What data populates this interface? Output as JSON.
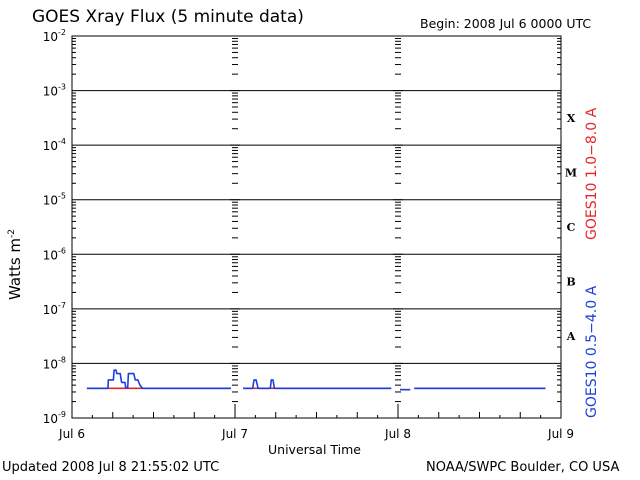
{
  "chart_data": {
    "type": "line",
    "title": "GOES Xray Flux (5 minute data)",
    "begin_label": "Begin:  2008 Jul 6 0000 UTC",
    "xlabel": "Universal Time",
    "ylabel": "Watts m",
    "ylabel_exp": "-2",
    "yscale": "log",
    "ylim": [
      1e-09,
      0.01
    ],
    "xlim": [
      0,
      72
    ],
    "x_unit": "hours since 2008 Jul 6 0000 UTC",
    "x_ticks": [
      {
        "x": 0,
        "label": "Jul 6"
      },
      {
        "x": 24,
        "label": "Jul 7"
      },
      {
        "x": 48,
        "label": "Jul 8"
      },
      {
        "x": 72,
        "label": "Jul 9"
      }
    ],
    "y_ticks": [
      {
        "exp": -9,
        "label": "10",
        "sup": "-9"
      },
      {
        "exp": -8,
        "label": "10",
        "sup": "-8"
      },
      {
        "exp": -7,
        "label": "10",
        "sup": "-7"
      },
      {
        "exp": -6,
        "label": "10",
        "sup": "-6"
      },
      {
        "exp": -5,
        "label": "10",
        "sup": "-5"
      },
      {
        "exp": -4,
        "label": "10",
        "sup": "-4"
      },
      {
        "exp": -3,
        "label": "10",
        "sup": "-3"
      },
      {
        "exp": -2,
        "label": "10",
        "sup": "-2"
      }
    ],
    "flare_classes": [
      {
        "label": "A",
        "exp": -7.5
      },
      {
        "label": "B",
        "exp": -6.5
      },
      {
        "label": "C",
        "exp": -5.5
      },
      {
        "label": "M",
        "exp": -4.5
      },
      {
        "label": "X",
        "exp": -3.5
      }
    ],
    "grid": true,
    "series": [
      {
        "name": "GOES10 1.0−8.0 A",
        "color": "#e8242b",
        "segments": [
          [
            [
              2.2,
              3.5e-09
            ],
            [
              23.4,
              3.5e-09
            ]
          ],
          [
            [
              25.2,
              3.5e-09
            ],
            [
              47.0,
              3.5e-09
            ]
          ],
          [
            [
              48.3,
              3.3e-09
            ],
            [
              49.8,
              3.3e-09
            ]
          ],
          [
            [
              50.4,
              3.5e-09
            ],
            [
              69.7,
              3.5e-09
            ]
          ]
        ]
      },
      {
        "name": "GOES10 0.5−4.0 A",
        "color": "#1e3fe0",
        "segments": [
          [
            [
              2.2,
              3.5e-09
            ],
            [
              5.3,
              3.5e-09
            ],
            [
              5.35,
              5e-09
            ],
            [
              6.1,
              5e-09
            ],
            [
              6.2,
              7.5e-09
            ],
            [
              6.5,
              7.5e-09
            ],
            [
              6.6,
              6.5e-09
            ],
            [
              7.1,
              6.5e-09
            ],
            [
              7.3,
              4.5e-09
            ],
            [
              7.8,
              4.5e-09
            ],
            [
              7.9,
              3.6e-09
            ],
            [
              8.2,
              3.6e-09
            ],
            [
              8.3,
              6.5e-09
            ],
            [
              9.1,
              6.5e-09
            ],
            [
              9.3,
              5e-09
            ],
            [
              9.7,
              5e-09
            ],
            [
              10.0,
              4e-09
            ],
            [
              10.4,
              3.5e-09
            ],
            [
              23.4,
              3.5e-09
            ]
          ],
          [
            [
              25.2,
              3.5e-09
            ],
            [
              26.6,
              3.5e-09
            ],
            [
              26.8,
              5e-09
            ],
            [
              27.1,
              5e-09
            ],
            [
              27.4,
              3.5e-09
            ],
            [
              29.2,
              3.5e-09
            ],
            [
              29.35,
              5e-09
            ],
            [
              29.6,
              5e-09
            ],
            [
              29.8,
              3.5e-09
            ],
            [
              47.0,
              3.5e-09
            ]
          ],
          [
            [
              48.3,
              3.3e-09
            ],
            [
              49.8,
              3.3e-09
            ]
          ],
          [
            [
              50.4,
              3.5e-09
            ],
            [
              69.7,
              3.5e-09
            ]
          ]
        ]
      }
    ]
  },
  "footer": {
    "updated": "Updated 2008 Jul  8 21:55:02 UTC",
    "credit": "NOAA/SWPC Boulder, CO USA"
  }
}
